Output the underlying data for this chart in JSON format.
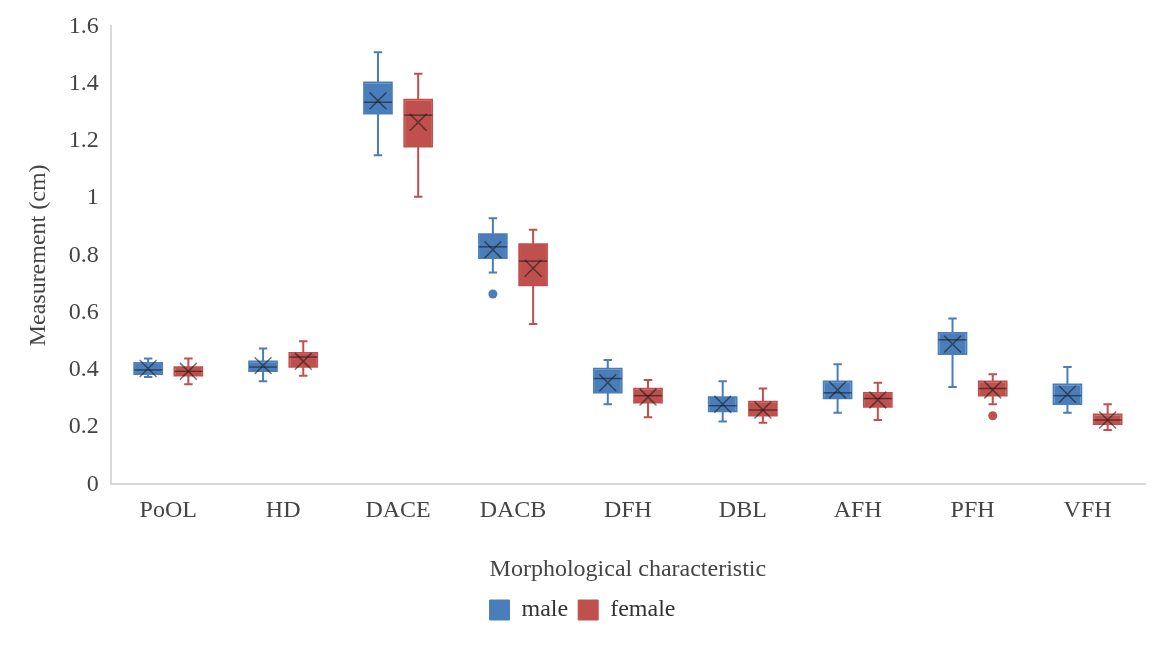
{
  "chart_data": {
    "type": "box",
    "xlabel": "Morphological characteristic",
    "ylabel": "Measurement (cm)",
    "categories": [
      "PoOL",
      "HD",
      "DACE",
      "DACB",
      "DFH",
      "DBL",
      "AFH",
      "PFH",
      "VFH"
    ],
    "ylim": [
      0,
      1.6
    ],
    "yticks": [
      0,
      {
        "value": 0.2,
        "label": "0.2"
      },
      {
        "value": 0.4,
        "label": "0.4"
      },
      {
        "value": 0.6,
        "label": "0.6"
      },
      {
        "value": 0.8,
        "label": "0.8"
      },
      1,
      {
        "value": 1.2,
        "label": "1.2"
      },
      {
        "value": 1.4,
        "label": "1.4"
      },
      {
        "value": 1.6,
        "label": "1.6"
      }
    ],
    "grid": false,
    "legend": "bottom",
    "marker": "cross",
    "series": [
      {
        "name": "male",
        "color": "#4a7ebb",
        "boxes": [
          {
            "low": 0.375,
            "q1": 0.385,
            "median": 0.4,
            "q3": 0.425,
            "high": 0.44,
            "mean": 0.405
          },
          {
            "low": 0.36,
            "q1": 0.395,
            "median": 0.41,
            "q3": 0.43,
            "high": 0.475,
            "mean": 0.415
          },
          {
            "low": 1.15,
            "q1": 1.295,
            "median": 1.335,
            "q3": 1.405,
            "high": 1.51,
            "mean": 1.34
          },
          {
            "low": 0.74,
            "q1": 0.79,
            "median": 0.83,
            "q3": 0.875,
            "high": 0.93,
            "mean": 0.82,
            "outliers": [
              0.665
            ]
          },
          {
            "low": 0.28,
            "q1": 0.32,
            "median": 0.37,
            "q3": 0.405,
            "high": 0.435,
            "mean": 0.355
          },
          {
            "low": 0.22,
            "q1": 0.255,
            "median": 0.275,
            "q3": 0.305,
            "high": 0.36,
            "mean": 0.28
          },
          {
            "low": 0.25,
            "q1": 0.3,
            "median": 0.32,
            "q3": 0.36,
            "high": 0.42,
            "mean": 0.33
          },
          {
            "low": 0.34,
            "q1": 0.455,
            "median": 0.505,
            "q3": 0.53,
            "high": 0.58,
            "mean": 0.49
          },
          {
            "low": 0.25,
            "q1": 0.28,
            "median": 0.31,
            "q3": 0.35,
            "high": 0.41,
            "mean": 0.315
          }
        ]
      },
      {
        "name": "female",
        "color": "#c0504d",
        "boxes": [
          {
            "low": 0.35,
            "q1": 0.38,
            "median": 0.395,
            "q3": 0.41,
            "high": 0.44,
            "mean": 0.395
          },
          {
            "low": 0.38,
            "q1": 0.41,
            "median": 0.445,
            "q3": 0.46,
            "high": 0.5,
            "mean": 0.43
          },
          {
            "low": 1.005,
            "q1": 1.18,
            "median": 1.29,
            "q3": 1.345,
            "high": 1.435,
            "mean": 1.265
          },
          {
            "low": 0.56,
            "q1": 0.695,
            "median": 0.78,
            "q3": 0.84,
            "high": 0.89,
            "mean": 0.755
          },
          {
            "low": 0.235,
            "q1": 0.285,
            "median": 0.31,
            "q3": 0.335,
            "high": 0.365,
            "mean": 0.305
          },
          {
            "low": 0.215,
            "q1": 0.24,
            "median": 0.26,
            "q3": 0.29,
            "high": 0.335,
            "mean": 0.26
          },
          {
            "low": 0.225,
            "q1": 0.27,
            "median": 0.3,
            "q3": 0.32,
            "high": 0.355,
            "mean": 0.295
          },
          {
            "low": 0.28,
            "q1": 0.31,
            "median": 0.335,
            "q3": 0.36,
            "high": 0.385,
            "mean": 0.33,
            "outliers": [
              0.24
            ]
          },
          {
            "low": 0.19,
            "q1": 0.21,
            "median": 0.225,
            "q3": 0.245,
            "high": 0.28,
            "mean": 0.225
          }
        ]
      }
    ]
  }
}
